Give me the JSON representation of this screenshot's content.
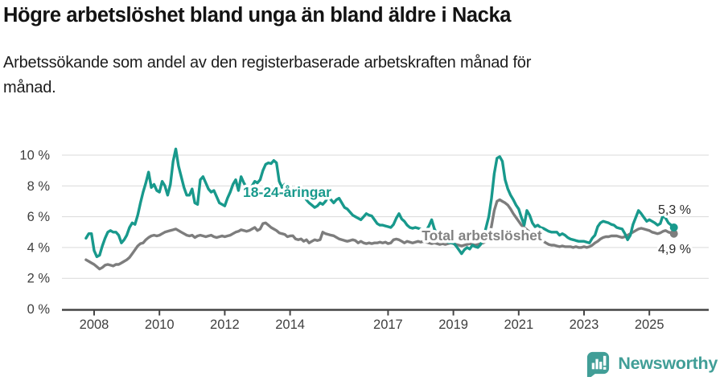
{
  "header": {
    "title": "Högre arbetslöshet bland unga än bland äldre i Nacka",
    "subtitle_lines": [
      "Arbetssökande som andel av den registerbaserade arbetskraften månad för",
      "månad."
    ]
  },
  "branding": {
    "logo_text": "Newsworthy",
    "logo_color": "#419e97"
  },
  "chart_data": {
    "type": "line",
    "title": "Högre arbetslöshet bland unga än bland äldre i Nacka",
    "subtitle": "Arbetssökande som andel av den registerbaserade arbetskraften månad för månad.",
    "x_start": "2007-10",
    "x_end": "2025-10",
    "x_ticks": [
      2008,
      2010,
      2012,
      2014,
      2017,
      2019,
      2021,
      2023,
      2025
    ],
    "x_tick_labels": [
      "2008",
      "2010",
      "2012",
      "2014",
      "2017",
      "2019",
      "2021",
      "2023",
      "2025"
    ],
    "y_ticks": [
      0,
      2,
      4,
      6,
      8,
      10
    ],
    "y_tick_labels": [
      "0 %",
      "2 %",
      "4 %",
      "6 %",
      "8 %",
      "10 %"
    ],
    "ylim": [
      0,
      10.6
    ],
    "grid": true,
    "legend": "inline-labels",
    "axis_color": "#454545",
    "grid_color": "#d9d9d9",
    "tick_text_color": "#3f3f3f",
    "end_label_color": "#2b2b2b",
    "series": [
      {
        "name": "18-24-åringar",
        "color": "#18998c",
        "end_label": "5,3 %",
        "end_value": 5.3,
        "values": [
          4.6,
          4.9,
          4.9,
          3.8,
          3.4,
          3.5,
          4.1,
          4.6,
          5.0,
          5.1,
          5.0,
          5.0,
          4.8,
          4.3,
          4.5,
          4.8,
          5.3,
          5.6,
          5.5,
          6.1,
          6.9,
          7.6,
          8.2,
          8.9,
          7.9,
          8.1,
          7.7,
          7.6,
          8.3,
          8.0,
          7.4,
          8.1,
          9.6,
          10.4,
          9.3,
          8.6,
          7.9,
          7.4,
          7.4,
          7.8,
          6.9,
          6.8,
          8.4,
          8.6,
          8.2,
          7.8,
          7.6,
          7.7,
          7.3,
          6.9,
          6.8,
          6.7,
          7.2,
          7.6,
          8.1,
          8.4,
          7.7,
          8.6,
          8.2,
          7.9,
          7.6,
          8.0,
          8.3,
          8.2,
          8.4,
          9.0,
          9.4,
          9.5,
          9.45,
          9.65,
          9.5,
          8.3,
          7.9,
          8.1,
          7.9,
          8.0,
          7.8,
          7.6,
          7.45,
          7.2,
          7.35,
          7.1,
          6.9,
          6.75,
          6.6,
          6.7,
          6.9,
          6.8,
          7.0,
          7.3,
          7.1,
          6.9,
          7.1,
          7.2,
          6.9,
          6.6,
          6.5,
          6.3,
          6.1,
          6.0,
          5.9,
          5.8,
          6.0,
          6.2,
          6.1,
          6.05,
          5.8,
          5.55,
          5.45,
          5.45,
          5.4,
          5.35,
          5.3,
          5.5,
          5.9,
          6.2,
          5.85,
          5.7,
          5.45,
          5.3,
          5.25,
          5.3,
          5.25,
          5.2,
          5.0,
          5.1,
          5.4,
          5.8,
          5.2,
          4.9,
          4.7,
          4.55,
          4.45,
          4.35,
          4.3,
          4.3,
          4.1,
          3.85,
          3.6,
          3.85,
          4.0,
          3.9,
          4.15,
          4.05,
          4.0,
          4.2,
          4.6,
          5.3,
          6.0,
          7.2,
          8.8,
          9.8,
          9.9,
          9.6,
          8.4,
          7.8,
          7.4,
          7.1,
          6.75,
          6.5,
          5.95,
          5.45,
          6.4,
          6.1,
          5.6,
          5.35,
          5.45,
          5.3,
          5.25,
          5.15,
          5.05,
          5.0,
          5.0,
          5.0,
          4.8,
          4.9,
          4.8,
          4.65,
          4.55,
          4.5,
          4.45,
          4.4,
          4.4,
          4.4,
          4.35,
          4.3,
          4.6,
          4.8,
          5.35,
          5.6,
          5.7,
          5.65,
          5.6,
          5.5,
          5.45,
          5.3,
          5.25,
          5.2,
          4.9,
          4.5,
          4.8,
          5.5,
          5.95,
          6.4,
          6.2,
          5.95,
          5.7,
          5.8,
          5.7,
          5.6,
          5.45,
          5.55,
          6.1,
          5.9,
          5.6,
          5.45,
          5.3
        ]
      },
      {
        "name": "Total arbetslöshet",
        "color": "#7d7d7d",
        "end_label": "4,9 %",
        "end_value": 4.9,
        "values": [
          3.2,
          3.1,
          3.0,
          2.9,
          2.75,
          2.6,
          2.7,
          2.85,
          2.9,
          2.85,
          2.8,
          2.9,
          2.9,
          3.0,
          3.1,
          3.2,
          3.35,
          3.6,
          3.85,
          4.1,
          4.25,
          4.3,
          4.5,
          4.65,
          4.75,
          4.8,
          4.75,
          4.8,
          4.9,
          5.0,
          5.05,
          5.1,
          5.15,
          5.2,
          5.1,
          5.0,
          4.9,
          4.8,
          4.75,
          4.8,
          4.65,
          4.75,
          4.8,
          4.75,
          4.7,
          4.75,
          4.8,
          4.7,
          4.65,
          4.7,
          4.75,
          4.7,
          4.75,
          4.8,
          4.9,
          5.0,
          5.05,
          5.15,
          5.1,
          5.05,
          5.1,
          5.2,
          5.3,
          5.1,
          5.2,
          5.55,
          5.6,
          5.45,
          5.3,
          5.2,
          5.1,
          4.95,
          4.9,
          4.85,
          4.7,
          4.75,
          4.76,
          4.56,
          4.5,
          4.56,
          4.4,
          4.5,
          4.3,
          4.4,
          4.5,
          4.45,
          4.5,
          5.0,
          4.9,
          4.85,
          4.8,
          4.76,
          4.66,
          4.56,
          4.5,
          4.45,
          4.4,
          4.45,
          4.5,
          4.45,
          4.3,
          4.4,
          4.3,
          4.25,
          4.3,
          4.25,
          4.3,
          4.3,
          4.35,
          4.3,
          4.35,
          4.25,
          4.3,
          4.5,
          4.55,
          4.5,
          4.4,
          4.3,
          4.4,
          4.35,
          4.3,
          4.35,
          4.4,
          4.35,
          4.4,
          4.35,
          4.3,
          4.25,
          4.3,
          4.25,
          4.2,
          4.25,
          4.2,
          4.25,
          4.3,
          4.25,
          4.2,
          4.15,
          4.1,
          4.15,
          4.2,
          4.25,
          4.2,
          4.15,
          4.2,
          4.25,
          4.3,
          4.4,
          4.6,
          5.4,
          6.4,
          7.0,
          7.1,
          7.0,
          6.9,
          6.75,
          6.5,
          6.2,
          5.95,
          5.7,
          5.45,
          5.3,
          5.15,
          5.0,
          4.85,
          4.7,
          4.6,
          4.5,
          4.4,
          4.3,
          4.2,
          4.15,
          4.15,
          4.1,
          4.05,
          4.1,
          4.05,
          4.05,
          4.05,
          4.0,
          4.05,
          4.0,
          4.0,
          4.05,
          4.0,
          4.05,
          4.15,
          4.3,
          4.4,
          4.55,
          4.65,
          4.7,
          4.7,
          4.75,
          4.75,
          4.75,
          4.7,
          4.65,
          4.7,
          4.8,
          4.9,
          5.0,
          5.1,
          5.2,
          5.25,
          5.2,
          5.15,
          5.1,
          5.0,
          4.95,
          4.9,
          4.95,
          5.05,
          5.1,
          5.0,
          4.95,
          4.9
        ]
      }
    ]
  }
}
